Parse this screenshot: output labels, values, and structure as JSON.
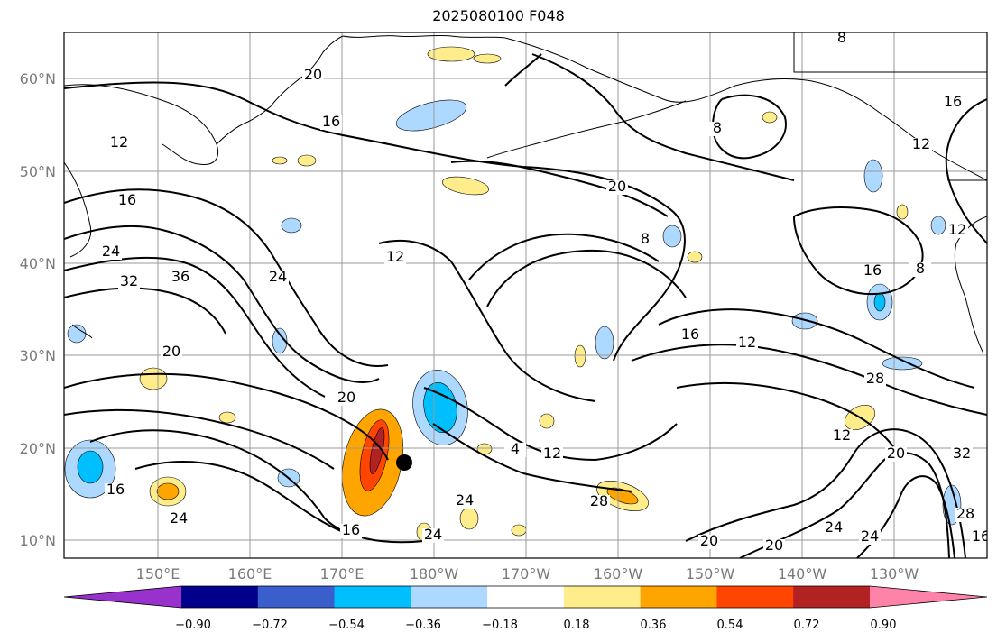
{
  "title": "2025080100 F048",
  "lon_ticks": [
    "150°E",
    "160°E",
    "170°E",
    "180°W",
    "170°W",
    "160°W",
    "150°W",
    "140°W",
    "130°W"
  ],
  "lat_ticks": [
    "60°N",
    "50°N",
    "40°N",
    "30°N",
    "20°N",
    "10°N"
  ],
  "contour_labels": [
    "20",
    "16",
    "12",
    "8",
    "8",
    "16",
    "12",
    "16",
    "20",
    "24",
    "8",
    "12",
    "36",
    "32",
    "24",
    "16",
    "8",
    "16",
    "20",
    "12",
    "28",
    "20",
    "4",
    "12",
    "12",
    "20",
    "32",
    "24",
    "24",
    "28",
    "20",
    "24",
    "16",
    "28",
    "24",
    "20",
    "16",
    "24",
    "16",
    "12"
  ],
  "colorbar": {
    "colors": [
      "#9932cc",
      "#00008b",
      "#3a5fcd",
      "#00bfff",
      "#add8ff",
      "#ffffff",
      "#ffec8b",
      "#ffa500",
      "#ff4500",
      "#b22222",
      "#ff83a9"
    ],
    "tick_labels": [
      "−0.90",
      "−0.72",
      "−0.54",
      "−0.36",
      "−0.18",
      "0.18",
      "0.36",
      "0.54",
      "0.72",
      "0.90"
    ]
  },
  "marker": "storm-center-dot"
}
